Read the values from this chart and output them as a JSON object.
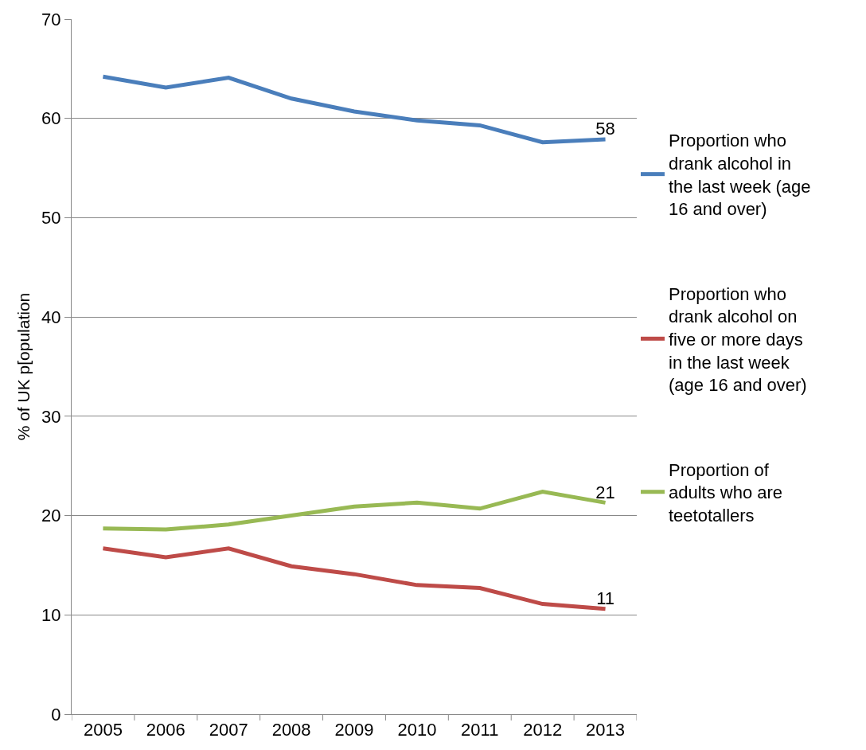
{
  "chart_data": {
    "type": "line",
    "ylabel": "% of UK p[opulation",
    "categories": [
      "2005",
      "2006",
      "2007",
      "2008",
      "2009",
      "2010",
      "2011",
      "2012",
      "2013"
    ],
    "series": [
      {
        "name": "Proportion who drank alcohol in the last week (age 16 and over)",
        "color": "#4a7ebb",
        "values": [
          64.2,
          63.1,
          64.1,
          62.0,
          60.7,
          59.8,
          59.3,
          57.6,
          57.9
        ],
        "value_labels": [
          null,
          null,
          null,
          null,
          null,
          null,
          null,
          null,
          "58"
        ]
      },
      {
        "name": "Proportion who drank alcohol on five or more days in the last week (age 16 and over)",
        "color": "#be4b48",
        "values": [
          16.7,
          15.8,
          16.7,
          14.9,
          14.1,
          13.0,
          12.7,
          11.1,
          10.6
        ],
        "value_labels": [
          null,
          null,
          null,
          null,
          null,
          null,
          null,
          null,
          "11"
        ]
      },
      {
        "name": "Proportion of adults who are teetotallers",
        "color": "#98b954",
        "values": [
          18.7,
          18.6,
          19.1,
          20.0,
          20.9,
          21.3,
          20.7,
          22.4,
          21.3
        ],
        "value_labels": [
          null,
          null,
          null,
          null,
          null,
          null,
          null,
          null,
          "21"
        ]
      }
    ],
    "ylim": [
      0,
      70
    ],
    "yticks": [
      0,
      10,
      20,
      30,
      40,
      50,
      60,
      70
    ],
    "grid": "y",
    "legend": "right",
    "line_style": "solid"
  }
}
